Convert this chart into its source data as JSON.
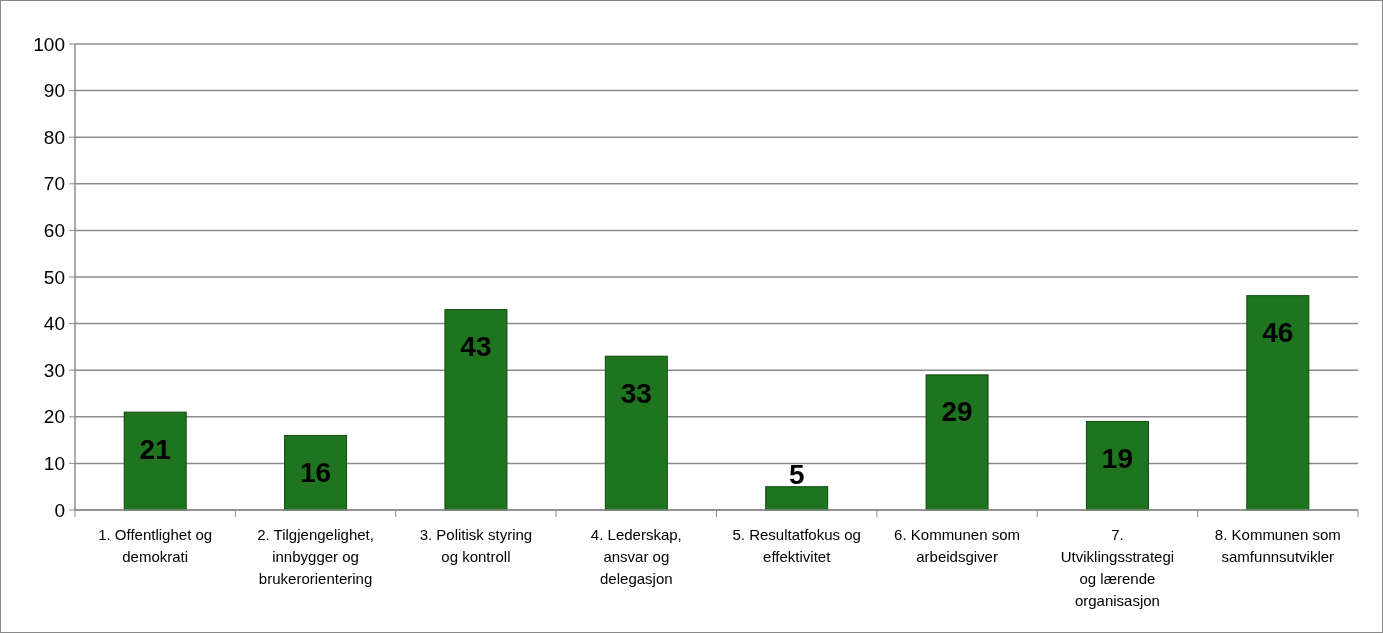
{
  "chart_data": {
    "type": "bar",
    "categories": [
      "1. Offentlighet og demokrati",
      "2. Tilgjengelighet, innbygger og brukerorientering",
      "3. Politisk styring og kontroll",
      "4. Lederskap, ansvar og delegasjon",
      "5. Resultatfokus og effektivitet",
      "6. Kommunen som arbeidsgiver",
      "7. Utviklingsstrategi og lærende organisasjon",
      "8. Kommunen som samfunnsutvikler"
    ],
    "values": [
      21,
      16,
      43,
      33,
      5,
      29,
      19,
      46
    ],
    "color": "#1f751f",
    "ylim": [
      0,
      100
    ],
    "yticks": [
      0,
      10,
      20,
      30,
      40,
      50,
      60,
      70,
      80,
      90,
      100
    ],
    "grid": "y",
    "data_labels": true
  }
}
